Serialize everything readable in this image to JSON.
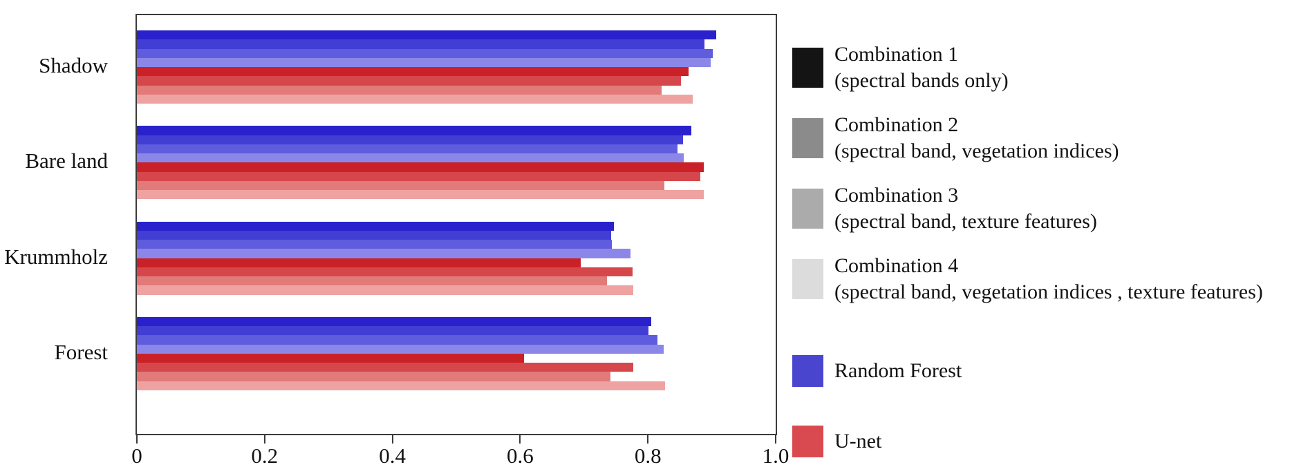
{
  "chart_data": {
    "type": "bar",
    "orientation": "horizontal",
    "title": "",
    "xlabel": "",
    "ylabel": "",
    "grid": false,
    "xlim": [
      0,
      1.0
    ],
    "x_ticks": [
      "0",
      "0.2",
      "0.4",
      "0.6",
      "0.8",
      "1.0"
    ],
    "categories": [
      "Shadow",
      "Bare land",
      "Krummholz",
      "Forest"
    ],
    "series": [
      {
        "name": "Random Forest - Combination 1 (spectral bands only)",
        "color": "#2a21cd",
        "values": [
          0.907,
          0.868,
          0.747,
          0.805
        ]
      },
      {
        "name": "Random Forest - Combination 2 (spectral band, vegetation indices)",
        "color": "#423ed4",
        "values": [
          0.889,
          0.855,
          0.742,
          0.801
        ]
      },
      {
        "name": "Random Forest - Combination 3 (spectral band, texture features)",
        "color": "#5f5cdd",
        "values": [
          0.901,
          0.846,
          0.743,
          0.815
        ]
      },
      {
        "name": "Random Forest - Combination 4 (spectral band, vegetation indices, texture features)",
        "color": "#8b87e9",
        "values": [
          0.898,
          0.856,
          0.773,
          0.825
        ]
      },
      {
        "name": "U-net - Combination 1 (spectral bands only)",
        "color": "#c92127",
        "values": [
          0.864,
          0.887,
          0.695,
          0.606
        ]
      },
      {
        "name": "U-net - Combination 2 (spectral band, vegetation indices)",
        "color": "#d6474c",
        "values": [
          0.852,
          0.882,
          0.776,
          0.777
        ]
      },
      {
        "name": "U-net - Combination 3 (spectral band, texture features)",
        "color": "#e27a7a",
        "values": [
          0.821,
          0.826,
          0.736,
          0.741
        ]
      },
      {
        "name": "U-net - Combination 4 (spectral band, vegetation indices, texture features)",
        "color": "#efa2a2",
        "values": [
          0.87,
          0.887,
          0.777,
          0.827
        ]
      }
    ],
    "legend_position": "right"
  },
  "legend": {
    "combinations": [
      {
        "label": "Combination 1",
        "detail": "(spectral bands only)",
        "color": "#141414"
      },
      {
        "label": "Combination 2",
        "detail": "(spectral band, vegetation indices)",
        "color": "#8b8b8b"
      },
      {
        "label": "Combination 3",
        "detail": "(spectral band, texture features)",
        "color": "#ababab"
      },
      {
        "label": "Combination 4",
        "detail": "(spectral band, vegetation indices , texture features)",
        "color": "#dcdcdc"
      }
    ],
    "models": [
      {
        "label": "Random Forest",
        "color": "#4a45cf"
      },
      {
        "label": "U-net",
        "color": "#d94a50"
      }
    ]
  }
}
